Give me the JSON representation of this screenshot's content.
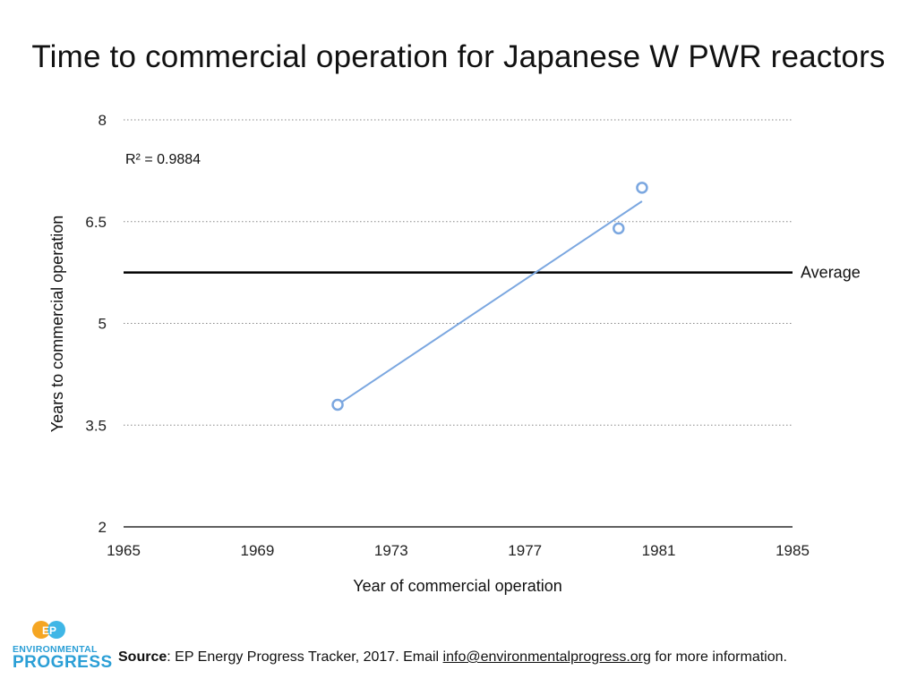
{
  "chart_data": {
    "type": "scatter",
    "title": "Time to commercial operation for Japanese W PWR reactors",
    "xlabel": "Year of commercial operation",
    "ylabel": "Years to commercial operation",
    "xlim": [
      1965,
      1985
    ],
    "ylim": [
      2,
      8
    ],
    "xticks": [
      1965,
      1969,
      1973,
      1977,
      1981,
      1985
    ],
    "yticks": [
      2,
      3.5,
      5,
      6.5,
      8
    ],
    "xtick_labels": [
      "1965",
      "1969",
      "1973",
      "1977",
      "1981",
      "1985"
    ],
    "ytick_labels": [
      "2",
      "3.5",
      "5",
      "6.5",
      "8"
    ],
    "grid": true,
    "points": [
      {
        "x": 1971.4,
        "y": 3.8
      },
      {
        "x": 1979.8,
        "y": 6.4
      },
      {
        "x": 1980.5,
        "y": 7.0
      }
    ],
    "trendline": {
      "x": [
        1971.4,
        1980.5
      ],
      "y": [
        3.8,
        6.8
      ],
      "r2_label": "R² = 0.9884"
    },
    "average": {
      "y": 5.75,
      "label": "Average"
    },
    "colors": {
      "series": "#7ba7e0",
      "average": "#000000",
      "grid": "#888888"
    }
  },
  "footer": {
    "source_bold": "Source",
    "source_text": ": EP Energy Progress Tracker, 2017. Email ",
    "email": "info@environmentalprogress.org",
    "source_tail": " for more information."
  },
  "logo": {
    "mark": "EP",
    "word1": "ENVIRONMENTAL",
    "word2": "PROGRESS",
    "colors": {
      "left": "#f5a623",
      "right": "#3fb6e6",
      "text": "#2b9fd6"
    }
  }
}
